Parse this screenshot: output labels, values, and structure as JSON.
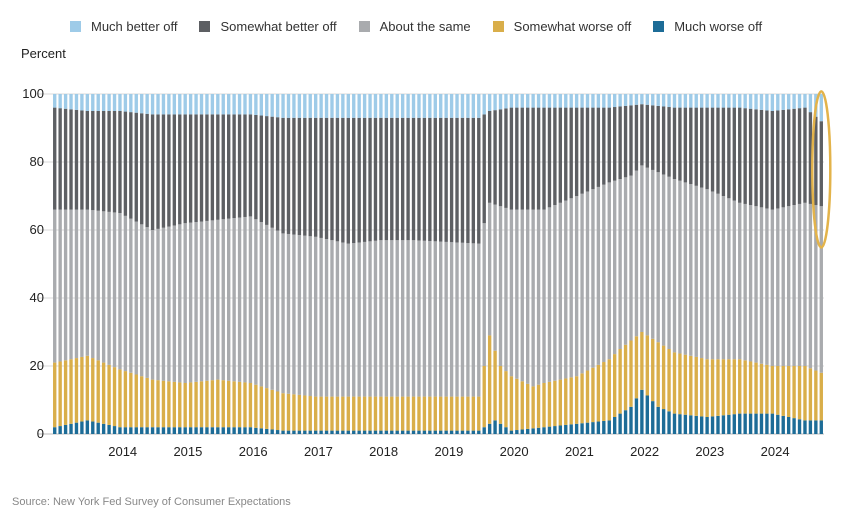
{
  "chart_data": {
    "type": "bar",
    "stacked": true,
    "title": "",
    "ylabel": "Percent",
    "xlabel": "",
    "ylim": [
      0,
      100
    ],
    "yticks": [
      0,
      20,
      40,
      60,
      80,
      100
    ],
    "grid": true,
    "legend_position": "top",
    "x_start": "2013-06",
    "x_tick_labels": [
      "2014",
      "2015",
      "2016",
      "2017",
      "2018",
      "2019",
      "2020",
      "2021",
      "2022",
      "2023",
      "2024"
    ],
    "highlight_label": "latest survey month",
    "series_keys": [
      "much_worse",
      "somewhat_worse",
      "about_same",
      "somewhat_better",
      "much_better"
    ],
    "series": [
      {
        "key": "much_better",
        "name": "Much better off",
        "color": "#9ecbe8"
      },
      {
        "key": "somewhat_better",
        "name": "Somewhat better off",
        "color": "#5d5f63"
      },
      {
        "key": "about_same",
        "name": "About the same",
        "color": "#a9abae"
      },
      {
        "key": "somewhat_worse",
        "name": "Somewhat worse off",
        "color": "#d9ae4a"
      },
      {
        "key": "much_worse",
        "name": "Much worse off",
        "color": "#1d6c97"
      }
    ],
    "anchors": {
      "much_worse": [
        [
          0,
          2
        ],
        [
          6,
          4
        ],
        [
          12,
          2
        ],
        [
          18,
          2
        ],
        [
          24,
          2
        ],
        [
          30,
          2
        ],
        [
          36,
          2
        ],
        [
          42,
          1
        ],
        [
          48,
          1
        ],
        [
          54,
          1
        ],
        [
          60,
          1
        ],
        [
          66,
          1
        ],
        [
          78,
          1
        ],
        [
          81,
          4
        ],
        [
          84,
          1
        ],
        [
          90,
          2
        ],
        [
          96,
          3
        ],
        [
          102,
          4
        ],
        [
          106,
          8
        ],
        [
          108,
          13
        ],
        [
          111,
          8
        ],
        [
          114,
          6
        ],
        [
          120,
          5
        ],
        [
          126,
          6
        ],
        [
          132,
          6
        ],
        [
          138,
          4
        ],
        [
          141,
          4
        ]
      ],
      "somewhat_worse": [
        [
          0,
          21
        ],
        [
          6,
          23
        ],
        [
          12,
          19
        ],
        [
          18,
          16
        ],
        [
          24,
          15
        ],
        [
          30,
          16
        ],
        [
          36,
          15
        ],
        [
          42,
          12
        ],
        [
          48,
          11
        ],
        [
          54,
          11
        ],
        [
          60,
          11
        ],
        [
          66,
          11
        ],
        [
          78,
          11
        ],
        [
          80,
          29
        ],
        [
          82,
          20
        ],
        [
          84,
          17
        ],
        [
          88,
          14
        ],
        [
          90,
          15
        ],
        [
          96,
          17
        ],
        [
          102,
          22
        ],
        [
          104,
          25
        ],
        [
          108,
          30
        ],
        [
          111,
          27
        ],
        [
          114,
          24
        ],
        [
          120,
          22
        ],
        [
          126,
          22
        ],
        [
          132,
          20
        ],
        [
          138,
          20
        ],
        [
          141,
          18
        ]
      ],
      "about_same": [
        [
          0,
          66
        ],
        [
          6,
          66
        ],
        [
          12,
          65
        ],
        [
          18,
          60
        ],
        [
          24,
          62
        ],
        [
          30,
          63
        ],
        [
          36,
          64
        ],
        [
          42,
          59
        ],
        [
          48,
          58
        ],
        [
          54,
          56
        ],
        [
          60,
          57
        ],
        [
          66,
          57
        ],
        [
          78,
          56
        ],
        [
          80,
          68
        ],
        [
          84,
          66
        ],
        [
          90,
          66
        ],
        [
          96,
          70
        ],
        [
          102,
          74
        ],
        [
          106,
          76
        ],
        [
          108,
          79
        ],
        [
          111,
          77
        ],
        [
          114,
          75
        ],
        [
          120,
          72
        ],
        [
          126,
          68
        ],
        [
          132,
          66
        ],
        [
          138,
          68
        ],
        [
          141,
          67
        ]
      ],
      "somewhat_better": [
        [
          0,
          96
        ],
        [
          6,
          95
        ],
        [
          12,
          95
        ],
        [
          18,
          94
        ],
        [
          24,
          94
        ],
        [
          30,
          94
        ],
        [
          36,
          94
        ],
        [
          42,
          93
        ],
        [
          48,
          93
        ],
        [
          54,
          93
        ],
        [
          60,
          93
        ],
        [
          66,
          93
        ],
        [
          78,
          93
        ],
        [
          80,
          95
        ],
        [
          84,
          96
        ],
        [
          90,
          96
        ],
        [
          96,
          96
        ],
        [
          102,
          96
        ],
        [
          108,
          97
        ],
        [
          114,
          96
        ],
        [
          120,
          96
        ],
        [
          126,
          96
        ],
        [
          132,
          95
        ],
        [
          138,
          96
        ],
        [
          141,
          92
        ]
      ]
    }
  },
  "legend": {
    "much_better": "Much better off",
    "somewhat_better": "Somewhat better off",
    "about_same": "About the same",
    "somewhat_worse": "Somewhat worse off",
    "much_worse": "Much worse off"
  },
  "axis": {
    "y_title": "Percent",
    "y_ticks": [
      "0",
      "20",
      "40",
      "60",
      "80",
      "100"
    ],
    "x_ticks": [
      "2014",
      "2015",
      "2016",
      "2017",
      "2018",
      "2019",
      "2020",
      "2021",
      "2022",
      "2023",
      "2024"
    ]
  },
  "source": "Source: New York Fed Survey of Consumer Expectations",
  "colors": {
    "much_better": "#9ecbe8",
    "somewhat_better": "#5d5f63",
    "about_same": "#a9abae",
    "somewhat_worse": "#d9ae4a",
    "much_worse": "#1d6c97",
    "highlight": "#e3b34a",
    "grid": "#d8d8d8"
  }
}
